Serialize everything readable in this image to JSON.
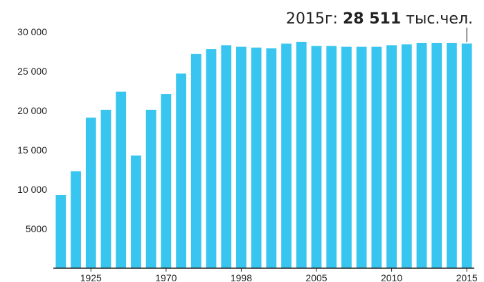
{
  "chart_data": {
    "type": "bar",
    "title": "",
    "xlabel": "",
    "ylabel": "",
    "ylim": [
      0,
      30000
    ],
    "yticks": [
      "30 000",
      "25 000",
      "20 000",
      "15 000",
      "10 000",
      "5000"
    ],
    "ytick_values": [
      30000,
      25000,
      20000,
      15000,
      10000,
      5000
    ],
    "x_labels": [
      "1925",
      "1970",
      "1998",
      "2005",
      "2010",
      "2015"
    ],
    "x_label_bar_index": [
      2,
      7,
      12,
      17,
      22,
      27
    ],
    "values": [
      9300,
      12300,
      19100,
      20100,
      22400,
      14300,
      20100,
      22100,
      24700,
      27200,
      27800,
      28300,
      28100,
      28000,
      27900,
      28500,
      28700,
      28200,
      28200,
      28100,
      28100,
      28100,
      28300,
      28400,
      28600,
      28600,
      28600,
      28511
    ],
    "bar_color": "#38c5ef",
    "grid": false,
    "annotation": {
      "prefix": "2015г: ",
      "value": "28 511",
      "suffix": " тыс.чел."
    }
  }
}
